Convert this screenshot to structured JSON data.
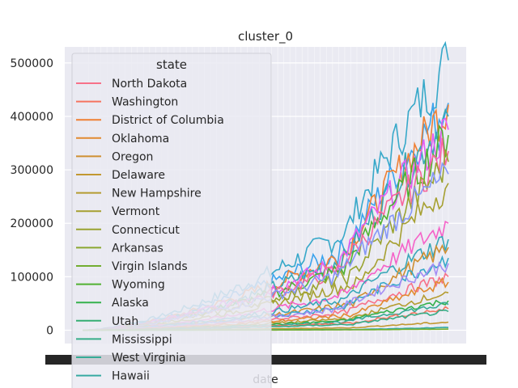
{
  "chart_data": {
    "type": "line",
    "title": "cluster_0",
    "xlabel": "date",
    "ylabel": "",
    "ylim": [
      -25000,
      530000
    ],
    "yticks": [
      0,
      100000,
      200000,
      300000,
      400000,
      500000
    ],
    "ytick_labels": [
      "0",
      "100000",
      "200000",
      "300000",
      "400000",
      "500000"
    ],
    "n_points": 120,
    "grid": true,
    "legend": {
      "title": "state",
      "placement": "upper-left",
      "entries": [
        {
          "name": "North Dakota",
          "color": "#f77189"
        },
        {
          "name": "Washington",
          "color": "#f6745f"
        },
        {
          "name": "District of Columbia",
          "color": "#ef7f32"
        },
        {
          "name": "Oklahoma",
          "color": "#e28a30"
        },
        {
          "name": "Oregon",
          "color": "#cf8f31"
        },
        {
          "name": "Delaware",
          "color": "#c29831"
        },
        {
          "name": "New Hampshire",
          "color": "#b59c31"
        },
        {
          "name": "Vermont",
          "color": "#a6a031"
        },
        {
          "name": "Connecticut",
          "color": "#99a331"
        },
        {
          "name": "Arkansas",
          "color": "#8aa731"
        },
        {
          "name": "Virgin Islands",
          "color": "#72ad31"
        },
        {
          "name": "Wyoming",
          "color": "#50b131"
        },
        {
          "name": "Alaska",
          "color": "#34b14d"
        },
        {
          "name": "Utah",
          "color": "#35ae73"
        },
        {
          "name": "Mississippi",
          "color": "#36ad88"
        },
        {
          "name": "West Virginia",
          "color": "#37ab96"
        },
        {
          "name": "Hawaii",
          "color": "#37aaa2"
        }
      ]
    },
    "series": [
      {
        "color": "#36a8c9",
        "final": 505000,
        "start_val": 0,
        "tail": 410000,
        "onset": 0.72
      },
      {
        "color": "#3ba3ec",
        "final": 425000,
        "start_val": 0,
        "tail": 340000,
        "onset": 0.72
      },
      {
        "color": "#ef7f32",
        "final": 422000,
        "start_val": 0,
        "tail": 320000,
        "onset": 0.72
      },
      {
        "color": "#37a8b3",
        "final": 400000,
        "start_val": 0,
        "tail": 300000,
        "onset": 0.72
      },
      {
        "color": "#e75cf2",
        "final": 375000,
        "start_val": 0,
        "tail": 280000,
        "onset": 0.7
      },
      {
        "color": "#50b131",
        "final": 365000,
        "start_val": 0,
        "tail": 260000,
        "onset": 0.72
      },
      {
        "color": "#f7659b",
        "final": 335000,
        "start_val": 0,
        "tail": 250000,
        "onset": 0.7
      },
      {
        "color": "#99a331",
        "final": 315000,
        "start_val": 0,
        "tail": 230000,
        "onset": 0.74
      },
      {
        "color": "#8597f7",
        "final": 292000,
        "start_val": 0,
        "tail": 230000,
        "onset": 0.7
      },
      {
        "color": "#a6a031",
        "final": 275000,
        "start_val": 0,
        "tail": 200000,
        "onset": 0.76
      },
      {
        "color": "#f562c8",
        "final": 200000,
        "start_val": 0,
        "tail": 150000,
        "onset": 0.72
      },
      {
        "color": "#39a7b8",
        "final": 170000,
        "start_val": 0,
        "tail": 130000,
        "onset": 0.72
      },
      {
        "color": "#cf8f31",
        "final": 155000,
        "start_val": 0,
        "tail": 110000,
        "onset": 0.74
      },
      {
        "color": "#36a8c9",
        "final": 135000,
        "start_val": 0,
        "tail": 100000,
        "onset": 0.72
      },
      {
        "color": "#a48cf4",
        "final": 125000,
        "start_val": 0,
        "tail": 90000,
        "onset": 0.7
      },
      {
        "color": "#f77189",
        "final": 100000,
        "start_val": 0,
        "tail": 75000,
        "onset": 0.72
      },
      {
        "color": "#e28a30",
        "final": 90000,
        "start_val": 0,
        "tail": 65000,
        "onset": 0.74
      },
      {
        "color": "#b59c31",
        "final": 70000,
        "start_val": 0,
        "tail": 50000,
        "onset": 0.74
      },
      {
        "color": "#34b14d",
        "final": 55000,
        "start_val": 0,
        "tail": 40000,
        "onset": 0.72
      },
      {
        "color": "#37ab96",
        "final": 48000,
        "start_val": 0,
        "tail": 35000,
        "onset": 0.72
      },
      {
        "color": "#f6745f",
        "final": 40000,
        "start_val": 0,
        "tail": 30000,
        "onset": 0.74
      },
      {
        "color": "#36ad88",
        "final": 35000,
        "start_val": 0,
        "tail": 25000,
        "onset": 0.74
      },
      {
        "color": "#c29831",
        "final": 15000,
        "start_val": 0,
        "tail": 10000,
        "onset": 0.74
      },
      {
        "color": "#37aaa2",
        "final": 5000,
        "start_val": 0,
        "tail": 3000,
        "onset": 0.76
      },
      {
        "color": "#72ad31",
        "final": 2000,
        "start_val": 0,
        "tail": 1500,
        "onset": 0.76
      }
    ]
  }
}
